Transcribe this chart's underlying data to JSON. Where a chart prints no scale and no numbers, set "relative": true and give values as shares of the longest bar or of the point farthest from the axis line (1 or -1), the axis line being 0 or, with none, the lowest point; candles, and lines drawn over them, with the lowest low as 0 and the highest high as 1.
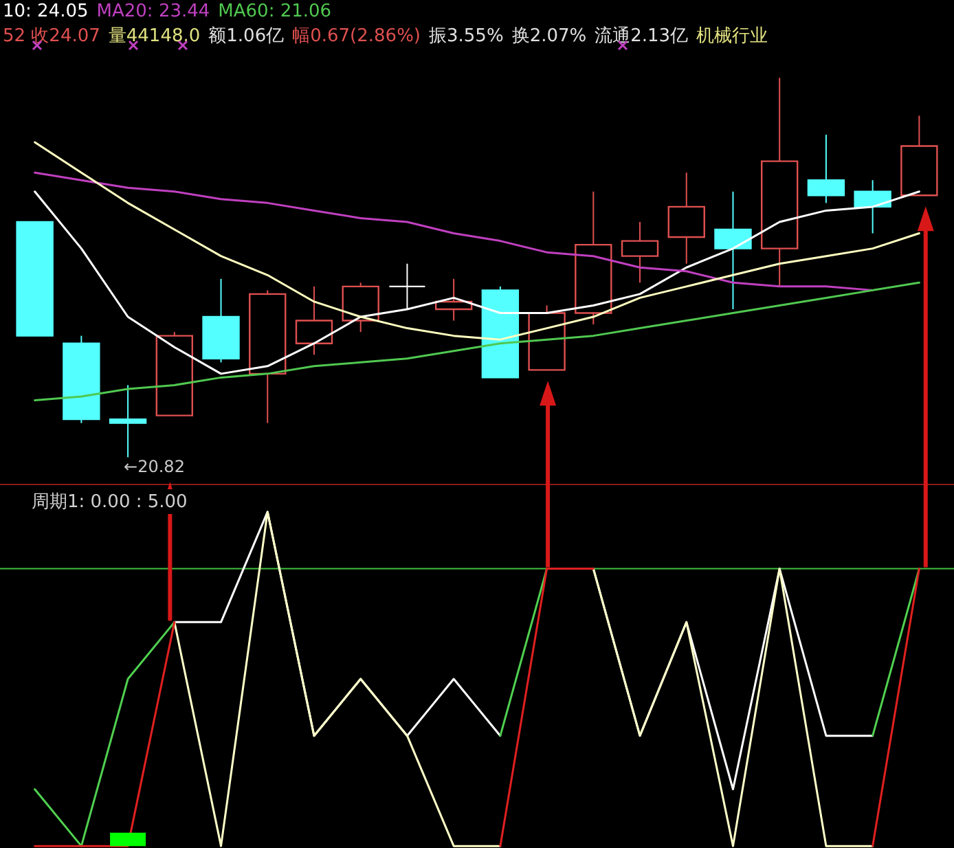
{
  "chart_data": [
    {
      "type": "candlestick",
      "relative": true,
      "categories": [
        null,
        null,
        null,
        null,
        null,
        null,
        null,
        null,
        null,
        null,
        null,
        null,
        null,
        null,
        null,
        null,
        null,
        null,
        null,
        null
      ],
      "ohlc": [
        [
          0.62,
          0.62,
          0.32,
          0.32
        ],
        [
          0.3,
          0.32,
          0.09,
          0.1
        ],
        [
          0.1,
          0.19,
          0,
          0.09
        ],
        [
          0.11,
          0.33,
          0.11,
          0.32
        ],
        [
          0.37,
          0.47,
          0.25,
          0.26
        ],
        [
          0.22,
          0.44,
          0.09,
          0.43
        ],
        [
          0.3,
          0.45,
          0.27,
          0.36
        ],
        [
          0.36,
          0.46,
          0.33,
          0.45
        ],
        [
          0.45,
          0.51,
          0.39,
          0.45
        ],
        [
          0.39,
          0.47,
          0.36,
          0.41
        ],
        [
          0.44,
          0.45,
          0.21,
          0.21
        ],
        [
          0.23,
          0.4,
          0.23,
          0.38
        ],
        [
          0.38,
          0.7,
          0.35,
          0.56
        ],
        [
          0.53,
          0.62,
          0.46,
          0.57
        ],
        [
          0.58,
          0.75,
          0.51,
          0.66
        ],
        [
          0.6,
          0.7,
          0.39,
          0.55
        ],
        [
          0.55,
          1.0,
          0.45,
          0.78
        ],
        [
          0.73,
          0.85,
          0.67,
          0.69
        ],
        [
          0.7,
          0.73,
          0.59,
          0.66
        ],
        [
          0.69,
          0.9,
          0.69,
          0.82
        ]
      ],
      "colors": [
        "#54ffff",
        "#54ffff",
        "#54ffff",
        "#e05050",
        "#54ffff",
        "#e05050",
        "#e05050",
        "#e05050",
        "#ffffff",
        "#e05050",
        "#54ffff",
        "#e05050",
        "#e05050",
        "#e05050",
        "#e05050",
        "#54ffff",
        "#e05050",
        "#54ffff",
        "#54ffff",
        "#e05050"
      ],
      "series": [
        {
          "type": "line",
          "color": "#ffffff",
          "values": [
            0.7,
            0.55,
            0.37,
            0.29,
            0.22,
            0.24,
            0.3,
            0.37,
            0.39,
            0.42,
            0.38,
            0.38,
            0.4,
            0.43,
            0.5,
            0.55,
            0.62,
            0.65,
            0.66,
            0.7
          ]
        },
        {
          "type": "line",
          "color": "#c040c0",
          "values": [
            0.75,
            0.73,
            0.71,
            0.7,
            0.68,
            0.67,
            0.65,
            0.63,
            0.62,
            0.59,
            0.57,
            0.54,
            0.53,
            0.5,
            0.49,
            0.46,
            0.45,
            0.45,
            0.44,
            null
          ]
        },
        {
          "type": "line",
          "color": "#50c850",
          "values": [
            0.15,
            0.16,
            0.18,
            0.19,
            0.21,
            0.22,
            0.24,
            0.25,
            0.26,
            0.28,
            0.3,
            0.31,
            0.32,
            0.34,
            0.36,
            0.38,
            0.4,
            0.42,
            0.44,
            0.46
          ]
        },
        {
          "type": "line",
          "color": "#ffffc0",
          "values": [
            0.83,
            0.75,
            0.67,
            0.6,
            0.53,
            0.48,
            0.41,
            0.37,
            0.34,
            0.32,
            0.31,
            0.34,
            0.37,
            0.42,
            0.45,
            0.48,
            0.51,
            0.53,
            0.55,
            0.59
          ]
        }
      ],
      "annotations": [
        "10: 24.05",
        "MA20: 23.44",
        "MA60: 21.06",
        "52 收24.07",
        "量44148.0",
        "额1.06亿",
        "幅0.67(2.86%)",
        "振3.55%",
        "换2.07%",
        "流通2.13亿",
        "机械行业",
        "←20.82"
      ]
    },
    {
      "type": "line",
      "relative": true,
      "title": "周期1: 0.00 : 5.00",
      "categories": [
        null,
        null,
        null,
        null,
        null,
        null,
        null,
        null,
        null,
        null,
        null,
        null,
        null,
        null,
        null,
        null,
        null,
        null,
        null,
        null
      ],
      "series": [
        {
          "type": "line",
          "color": "#ffffff",
          "values": [
            null,
            null,
            null,
            0.67,
            0.67,
            1,
            0.33,
            0.5,
            0.33,
            0.5,
            0.33,
            null,
            0.83,
            0.33,
            0.67,
            0.17,
            0.83,
            0.33,
            0.33,
            null
          ]
        },
        {
          "type": "line",
          "color": "#ffffc8",
          "values": [
            null,
            null,
            null,
            0.67,
            0,
            1,
            0.33,
            0.5,
            0.33,
            0,
            0,
            null,
            0.83,
            0.33,
            0.67,
            0,
            0.83,
            0,
            0,
            null
          ]
        },
        {
          "type": "line",
          "color": "#50d050",
          "values": [
            0.17,
            0,
            0.5,
            0.67,
            null,
            null,
            null,
            null,
            null,
            null,
            0.33,
            0.83,
            null,
            null,
            null,
            null,
            null,
            null,
            0.33,
            0.83
          ]
        },
        {
          "type": "line",
          "color": "#e02020",
          "values": [
            0,
            0,
            0,
            0.67,
            null,
            null,
            null,
            null,
            null,
            null,
            0,
            0.83,
            0.83,
            null,
            null,
            null,
            null,
            null,
            0,
            0.83
          ]
        },
        {
          "type": "bar",
          "color": "#00ff00",
          "values": [
            null,
            null,
            0.04,
            null,
            null,
            null,
            null,
            null,
            null,
            null,
            null,
            null,
            null,
            null,
            null,
            null,
            null,
            null,
            null,
            null
          ]
        }
      ],
      "ref_lines": [
        {
          "axis": "y",
          "value": 0.83,
          "color": "#40c040"
        }
      ]
    }
  ]
}
